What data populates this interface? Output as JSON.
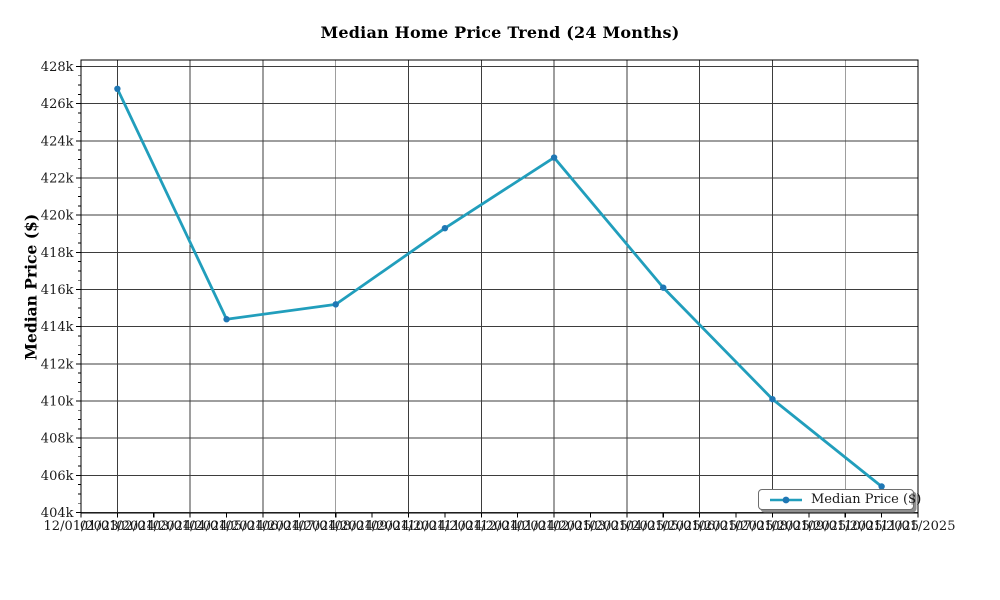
{
  "chart_data": {
    "type": "line",
    "title": "Median Home Price Trend (24 Months)",
    "xlabel": "",
    "ylabel": "Median Price ($)",
    "grid": "on",
    "x_tick_labels": [
      "12/01/2023",
      "01/01/2024",
      "02/01/2024",
      "03/01/2024",
      "04/01/2024",
      "05/01/2024",
      "06/01/2024",
      "07/01/2024",
      "08/01/2024",
      "09/01/2024",
      "10/01/2024",
      "11/01/2024",
      "12/01/2024",
      "01/01/2025",
      "02/01/2025",
      "03/01/2025",
      "04/01/2025",
      "05/01/2025",
      "06/01/2025",
      "07/01/2025",
      "08/01/2025",
      "09/01/2025",
      "10/01/2025",
      "11/01/2025"
    ],
    "x_gridline_month_indices": [
      1,
      3,
      5,
      7,
      9,
      11,
      13,
      15,
      17,
      19,
      21,
      23
    ],
    "y_ticks": {
      "values": [
        404000,
        406000,
        408000,
        410000,
        412000,
        414000,
        416000,
        418000,
        420000,
        422000,
        424000,
        426000,
        428000
      ],
      "labels": [
        "404k",
        "406k",
        "408k",
        "410k",
        "412k",
        "414k",
        "416k",
        "418k",
        "420k",
        "422k",
        "424k",
        "426k",
        "428k"
      ]
    },
    "y_minor_tick_step": 500,
    "ylim": [
      403900,
      428350
    ],
    "series": [
      {
        "name": "Median Price ($)",
        "x": [
          "01/01/2024",
          "04/01/2024",
          "07/01/2024",
          "10/01/2024",
          "01/01/2025",
          "04/01/2025",
          "07/01/2025",
          "10/01/2025"
        ],
        "x_month_index": [
          1,
          4,
          7,
          10,
          13,
          16,
          19,
          22
        ],
        "values": [
          426800,
          414400,
          415200,
          419300,
          423100,
          416100,
          410100,
          405400
        ]
      }
    ],
    "legend": {
      "label": "Median Price ($)",
      "position": "lower right"
    },
    "colors": {
      "line": "#219ebc",
      "marker": "#1f77b4",
      "grid": "#3d3d3d",
      "spine": "#000000",
      "text": "#1a1a1a"
    }
  }
}
